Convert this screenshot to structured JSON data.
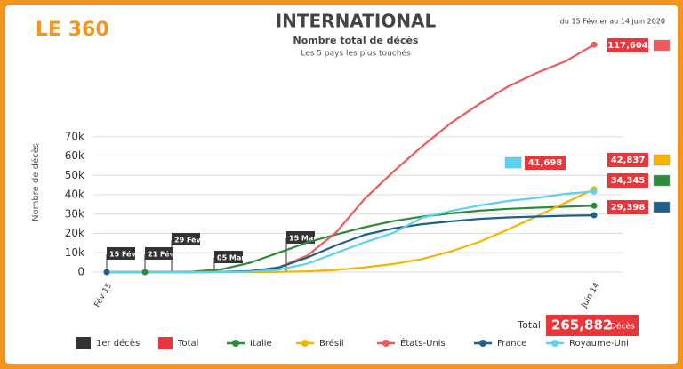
{
  "chart_data": {
    "type": "line",
    "brand": "LE 360",
    "title": "INTERNATIONAL",
    "subtitle": "Nombre total de décès",
    "subtitle2": "Les 5 pays les plus touchés",
    "date_range": "du 15 Février au 14 juin 2020",
    "y_label": "Nombre de décès",
    "categories": [
      "Fév 15",
      null,
      null,
      null,
      null,
      null,
      null,
      null,
      null,
      null,
      null,
      null,
      null,
      null,
      null,
      null,
      null,
      "Juin 14"
    ],
    "ylim": [
      0,
      120000
    ],
    "yticks": [
      0,
      {
        "value": 10000,
        "label": "10k"
      },
      {
        "value": 20000,
        "label": "20k"
      },
      {
        "value": 30000,
        "label": "30k"
      },
      {
        "value": 40000,
        "label": "40k"
      },
      {
        "value": 50000,
        "label": "50k"
      },
      {
        "value": 60000,
        "label": "60k"
      },
      {
        "value": 70000,
        "label": "70k"
      }
    ],
    "grid": true,
    "first_deaths": [
      "15 Fév",
      "21 Fév",
      "29 Fév",
      "05 Mar",
      "15 Mar"
    ],
    "total": {
      "label": "Total",
      "value": "265,882",
      "unit": "Décès"
    },
    "legend_extra": [
      "1er décès",
      "Total"
    ],
    "series": [
      {
        "name": "Italie",
        "color": "#2e8b3a",
        "values": [
          0,
          0,
          29,
          233,
          1441,
          4825,
          10023,
          15362,
          19468,
          23227,
          26384,
          28710,
          30395,
          31763,
          32735,
          33340,
          33846,
          34345
        ],
        "value_labels": [
          null,
          null,
          null,
          null,
          null,
          null,
          null,
          null,
          null,
          null,
          null,
          null,
          null,
          null,
          null,
          null,
          null,
          "34,345"
        ]
      },
      {
        "name": "Brésil",
        "color": "#f5b400",
        "values": [
          0,
          0,
          0,
          0,
          0,
          18,
          111,
          432,
          1124,
          2462,
          4205,
          6750,
          10656,
          15633,
          22013,
          28834,
          35930,
          42837
        ],
        "value_labels": [
          null,
          null,
          null,
          null,
          null,
          null,
          null,
          null,
          null,
          null,
          null,
          null,
          null,
          null,
          null,
          null,
          null,
          "42,837"
        ]
      },
      {
        "name": "États-Unis",
        "color": "#ee5a5a",
        "values": [
          0,
          0,
          1,
          17,
          57,
          427,
          2467,
          8500,
          20500,
          38000,
          52000,
          65000,
          77000,
          87000,
          96000,
          103000,
          109000,
          117604
        ],
        "value_labels": [
          null,
          null,
          null,
          null,
          null,
          null,
          null,
          null,
          null,
          null,
          null,
          null,
          null,
          null,
          null,
          null,
          null,
          "117,604"
        ]
      },
      {
        "name": "France",
        "color": "#1f5f8b",
        "values": [
          1,
          1,
          2,
          16,
          91,
          562,
          2314,
          7560,
          13832,
          19323,
          22614,
          24760,
          26230,
          27529,
          28289,
          28717,
          29142,
          29398
        ],
        "value_labels": [
          null,
          null,
          null,
          null,
          null,
          null,
          null,
          null,
          null,
          null,
          null,
          null,
          null,
          null,
          null,
          null,
          null,
          "29,398"
        ]
      },
      {
        "name": "Royaume-Uni",
        "color": "#5ad2f0",
        "values": [
          0,
          0,
          0,
          2,
          21,
          233,
          1228,
          4320,
          9875,
          15464,
          20319,
          28131,
          31587,
          34466,
          36793,
          38376,
          40465,
          41698
        ],
        "value_labels": [
          null,
          null,
          null,
          null,
          null,
          null,
          null,
          null,
          null,
          null,
          null,
          null,
          null,
          null,
          null,
          null,
          null,
          "41,698"
        ]
      }
    ]
  }
}
